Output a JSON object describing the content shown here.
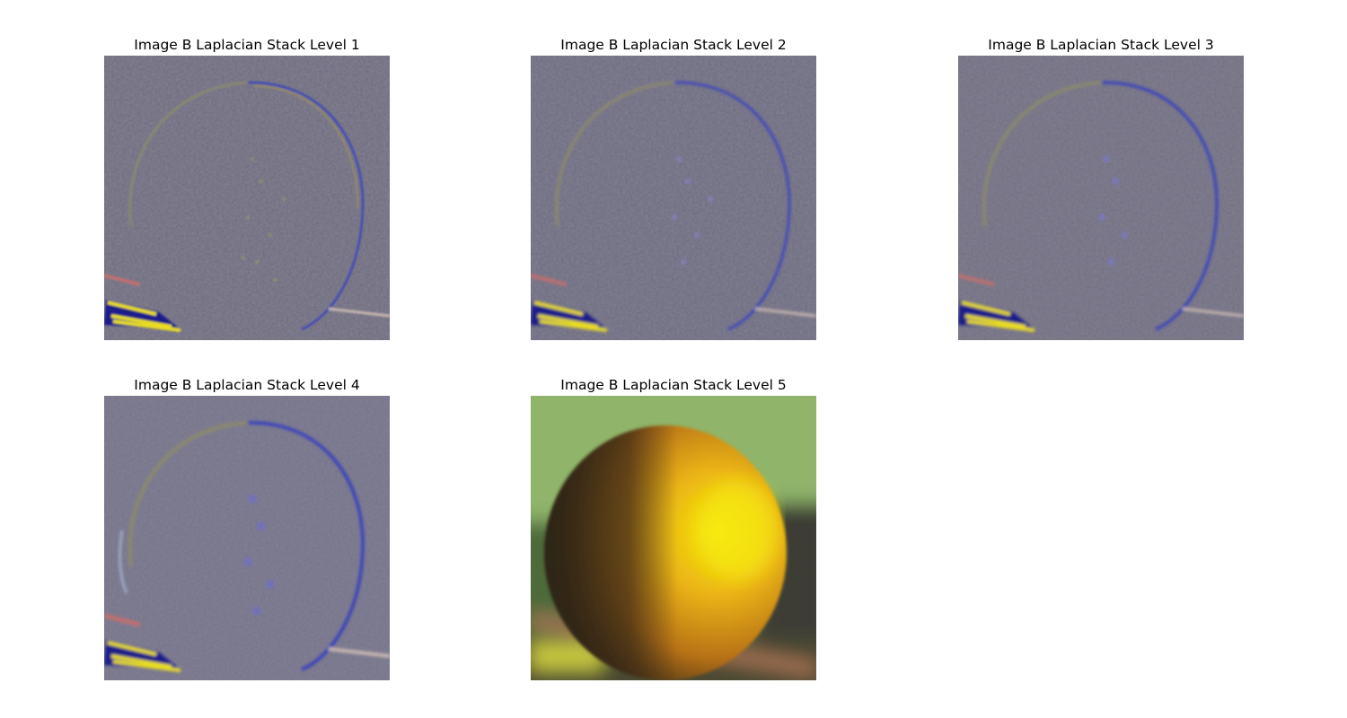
{
  "figure": {
    "panels": [
      {
        "title": "Image B Laplacian Stack Level 1",
        "kind": "laplacian",
        "level": 1
      },
      {
        "title": "Image B Laplacian Stack Level 2",
        "kind": "laplacian",
        "level": 2
      },
      {
        "title": "Image B Laplacian Stack Level 3",
        "kind": "laplacian",
        "level": 3
      },
      {
        "title": "Image B Laplacian Stack Level 4",
        "kind": "laplacian",
        "level": 4
      },
      {
        "title": "Image B Laplacian Stack Level 5",
        "kind": "gaussian-residual",
        "level": 5
      }
    ]
  },
  "colors": {
    "laplacian_bg": "#6e6c7e",
    "edge_blue": "#2a36c8",
    "edge_yellow": "#e6d81e",
    "fruit_orange": "#e6a014",
    "fruit_yellow": "#f2e20a",
    "fruit_dark": "#3a2a14",
    "background_green": "#8fb46a",
    "background_dark": "#3e3e34"
  }
}
